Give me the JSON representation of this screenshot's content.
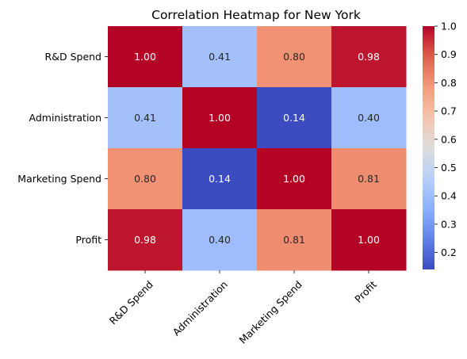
{
  "chart_data": {
    "type": "heatmap",
    "title": "Correlation Heatmap for New York",
    "x_labels": [
      "R&D Spend",
      "Administration",
      "Marketing Spend",
      "Profit"
    ],
    "y_labels": [
      "R&D Spend",
      "Administration",
      "Marketing Spend",
      "Profit"
    ],
    "values": [
      [
        1.0,
        0.41,
        0.8,
        0.98
      ],
      [
        0.41,
        1.0,
        0.14,
        0.4
      ],
      [
        0.8,
        0.14,
        1.0,
        0.81
      ],
      [
        0.98,
        0.4,
        0.81,
        1.0
      ]
    ],
    "annotation_format": "2 decimals",
    "colormap": "coolwarm",
    "colorbar": {
      "min": 0.14,
      "max": 1.0,
      "ticks": [
        0.2,
        0.3,
        0.4,
        0.5,
        0.6,
        0.7,
        0.8,
        0.9,
        1.0
      ],
      "tick_labels": [
        "0.2",
        "0.3",
        "0.4",
        "0.5",
        "0.6",
        "0.7",
        "0.8",
        "0.9",
        "1.0"
      ],
      "placement": "right"
    },
    "xtick_rotation_deg": 45
  }
}
